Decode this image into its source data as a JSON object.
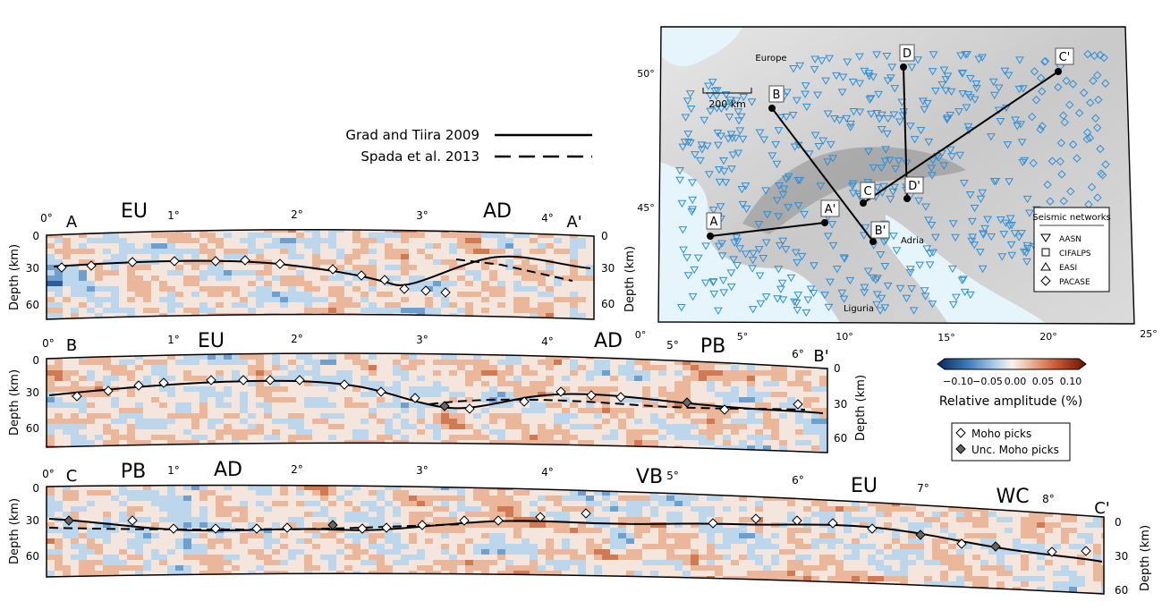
{
  "legend": {
    "line1": "Grad and Tiira 2009",
    "line2": "Spada et al. 2013"
  },
  "panels": [
    {
      "id": "A",
      "start_label": "A",
      "end_label": "A'",
      "degree_ticks": [
        "0°",
        "1°",
        "2°",
        "3°",
        "4°"
      ],
      "regions": [
        "EU",
        "AD"
      ],
      "left_depth_ticks": [
        "0",
        "30",
        "60"
      ],
      "right_depth_ticks": [
        "0",
        "30",
        "60"
      ],
      "left_axis_label": "Depth (km)",
      "right_axis_label": "Depth (km)"
    },
    {
      "id": "B",
      "start_label": "B",
      "end_label": "B'",
      "degree_ticks": [
        "0°",
        "1°",
        "2°",
        "3°",
        "4°",
        "5°",
        "6°"
      ],
      "regions": [
        "EU",
        "AD",
        "PB"
      ],
      "left_depth_ticks": [
        "0",
        "30",
        "60"
      ],
      "right_depth_ticks": [
        "0",
        "30",
        "60"
      ],
      "left_axis_label": "Depth (km)",
      "right_axis_label": "Depth (km)"
    },
    {
      "id": "C",
      "start_label": "C",
      "end_label": "C'",
      "degree_ticks": [
        "0°",
        "1°",
        "2°",
        "3°",
        "4°",
        "5°",
        "6°",
        "7°",
        "8°"
      ],
      "regions": [
        "PB",
        "AD",
        "VB",
        "EU",
        "WC"
      ],
      "left_depth_ticks": [
        "0",
        "30",
        "60"
      ],
      "right_depth_ticks": [
        "0",
        "30",
        "60"
      ],
      "left_axis_label": "Depth (km)",
      "right_axis_label": "Depth (km)"
    }
  ],
  "map": {
    "lat_ticks": [
      "50°",
      "45°"
    ],
    "lon_ticks": [
      "0°",
      "5°",
      "10°",
      "15°",
      "20°",
      "25°"
    ],
    "scale_bar": "200 km",
    "place_labels": [
      "Europe",
      "Adria",
      "Liguria"
    ],
    "profile_labels": [
      "A",
      "A'",
      "B",
      "B'",
      "C",
      "C'",
      "D",
      "D'"
    ],
    "networks_title": "Seismic networks",
    "networks": [
      "AASN",
      "CIFALPS",
      "EASI",
      "PACASE"
    ]
  },
  "colorbar": {
    "ticks": [
      "−0.10",
      "−0.05",
      "0.00",
      "0.05",
      "0.10"
    ],
    "label": "Relative amplitude (%)"
  },
  "moho_legend": {
    "picks": "Moho picks",
    "unc_picks": "Unc. Moho picks"
  },
  "colors": {
    "red": "#8c1a08",
    "blue": "#1c4f8f",
    "station": "#2f8fd8",
    "pick_uncertain": "#666666"
  }
}
